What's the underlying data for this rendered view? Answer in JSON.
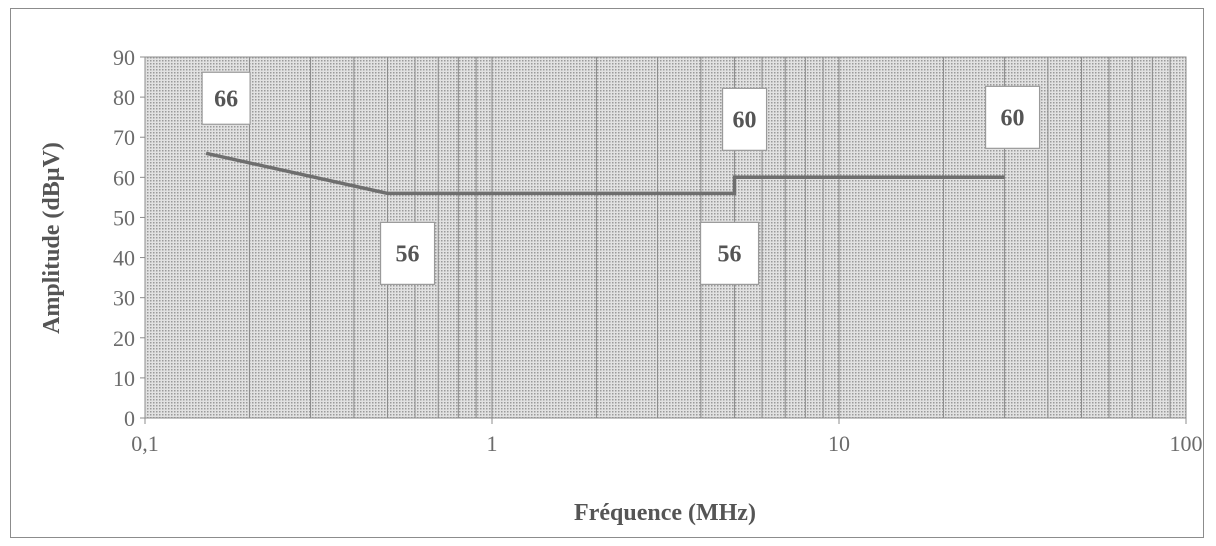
{
  "chart_data": {
    "type": "line",
    "xlabel": "Fréquence (MHz)",
    "ylabel": "Amplitude (dBµV)",
    "x_scale": "log",
    "xlim": [
      0.1,
      100
    ],
    "ylim": [
      0,
      90
    ],
    "x_ticks": [
      {
        "value": 0.1,
        "label": "0,1"
      },
      {
        "value": 1,
        "label": "1"
      },
      {
        "value": 10,
        "label": "10"
      },
      {
        "value": 100,
        "label": "100"
      }
    ],
    "y_ticks": [
      0,
      10,
      20,
      30,
      40,
      50,
      60,
      70,
      80,
      90
    ],
    "grid": "vertical log minor and major lines",
    "series": [
      {
        "points": [
          {
            "x": 0.15,
            "y": 66
          },
          {
            "x": 0.5,
            "y": 56
          },
          {
            "x": 5,
            "y": 56
          },
          {
            "x": 5,
            "y": 60
          },
          {
            "x": 30,
            "y": 60
          }
        ],
        "color": "#6e6e6e"
      }
    ],
    "data_labels": [
      {
        "x": 0.15,
        "y": 66,
        "text": "66"
      },
      {
        "x": 0.5,
        "y": 56,
        "text": "56"
      },
      {
        "x": 5,
        "y": 56,
        "text": "56"
      },
      {
        "x": 5,
        "y": 60,
        "text": "60"
      },
      {
        "x": 30,
        "y": 60,
        "text": "60"
      }
    ],
    "colors": {
      "plot_background": "#d4d4d4",
      "line": "#6e6e6e",
      "grid": "#8a8a8a"
    }
  }
}
